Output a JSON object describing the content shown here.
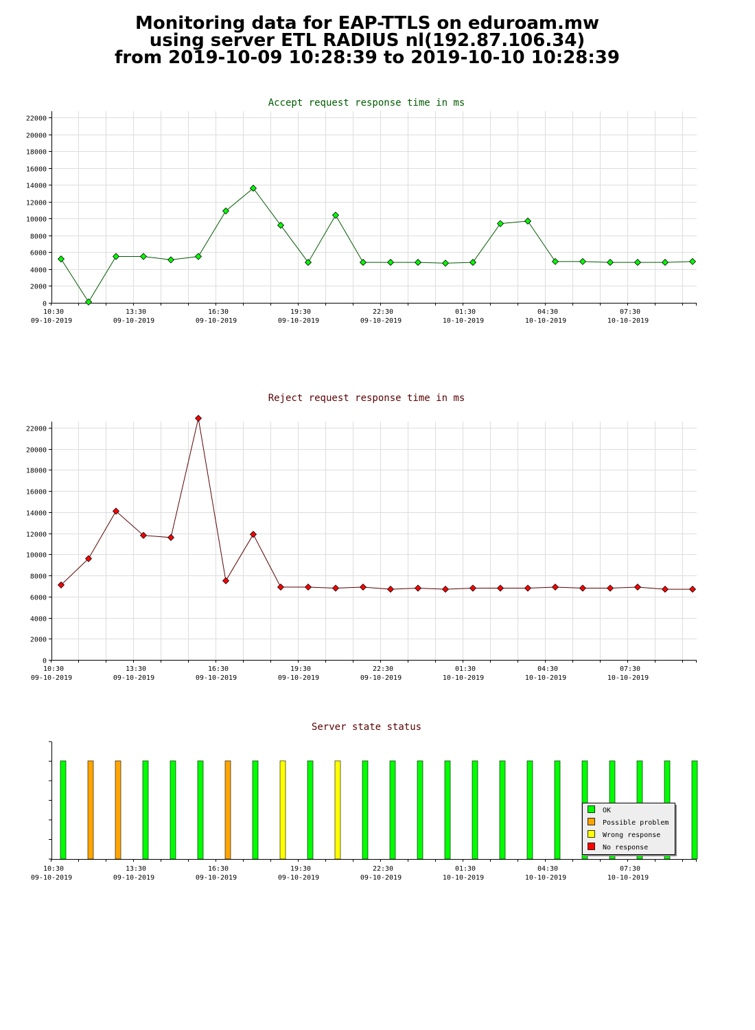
{
  "page": {
    "title_lines": [
      "Monitoring data for EAP-TTLS on eduroam.mw",
      "using server ETL RADIUS nl(192.87.106.34)",
      "from 2019-10-09 10:28:39 to 2019-10-10 10:28:39"
    ]
  },
  "chart_data": [
    {
      "type": "line",
      "title": "Accept request response time in ms",
      "title_color": "#005a00",
      "line_color": "#005a00",
      "marker_color": "#00ff00",
      "ylim": [
        0,
        22000
      ],
      "y_ticks": [
        0,
        2000,
        4000,
        6000,
        8000,
        10000,
        12000,
        14000,
        16000,
        18000,
        20000,
        22000
      ],
      "x_tick_labels": [
        [
          "10:30",
          "09-10-2019"
        ],
        [
          "13:30",
          "09-10-2019"
        ],
        [
          "16:30",
          "09-10-2019"
        ],
        [
          "19:30",
          "09-10-2019"
        ],
        [
          "22:30",
          "09-10-2019"
        ],
        [
          "01:30",
          "10-10-2019"
        ],
        [
          "04:30",
          "10-10-2019"
        ],
        [
          "07:30",
          "10-10-2019"
        ]
      ],
      "grid": true,
      "values": [
        5200,
        100,
        5500,
        5500,
        5100,
        5500,
        10900,
        13600,
        9200,
        4800,
        10400,
        4800,
        4800,
        4800,
        4700,
        4800,
        9400,
        9700,
        4900,
        4900,
        4800,
        4800,
        4800,
        4900
      ]
    },
    {
      "type": "line",
      "title": "Reject request response time in ms",
      "title_color": "#5a0000",
      "line_color": "#5a0000",
      "marker_color": "#ff0000",
      "ylim": [
        0,
        22000
      ],
      "y_ticks": [
        0,
        2000,
        4000,
        6000,
        8000,
        10000,
        12000,
        14000,
        16000,
        18000,
        20000,
        22000
      ],
      "x_tick_labels": [
        [
          "10:30",
          "09-10-2019"
        ],
        [
          "13:30",
          "09-10-2019"
        ],
        [
          "16:30",
          "09-10-2019"
        ],
        [
          "19:30",
          "09-10-2019"
        ],
        [
          "22:30",
          "09-10-2019"
        ],
        [
          "01:30",
          "10-10-2019"
        ],
        [
          "04:30",
          "10-10-2019"
        ],
        [
          "07:30",
          "10-10-2019"
        ]
      ],
      "grid": true,
      "values": [
        7100,
        9600,
        14100,
        11800,
        11600,
        22900,
        7500,
        11900,
        6900,
        6900,
        6800,
        6900,
        6700,
        6800,
        6700,
        6800,
        6800,
        6800,
        6900,
        6800,
        6800,
        6900,
        6700,
        6700
      ]
    },
    {
      "type": "bar",
      "title": "Server state status",
      "title_color": "#5a0000",
      "x_tick_labels": [
        [
          "10:30",
          "09-10-2019"
        ],
        [
          "13:30",
          "09-10-2019"
        ],
        [
          "16:30",
          "09-10-2019"
        ],
        [
          "19:30",
          "09-10-2019"
        ],
        [
          "22:30",
          "09-10-2019"
        ],
        [
          "01:30",
          "10-10-2019"
        ],
        [
          "04:30",
          "10-10-2019"
        ],
        [
          "07:30",
          "10-10-2019"
        ]
      ],
      "states": [
        "OK",
        "Possible problem",
        "Possible problem",
        "OK",
        "OK",
        "OK",
        "Possible problem",
        "OK",
        "Wrong response",
        "OK",
        "Wrong response",
        "OK",
        "OK",
        "OK",
        "OK",
        "OK",
        "OK",
        "OK",
        "OK",
        "OK",
        "OK",
        "OK",
        "OK",
        "OK"
      ],
      "legend": {
        "placement": "bottom-right",
        "items": [
          {
            "label": "OK",
            "color": "#00ff00"
          },
          {
            "label": "Possible problem",
            "color": "#ffa500"
          },
          {
            "label": "Wrong response",
            "color": "#ffff00"
          },
          {
            "label": "No response",
            "color": "#ff0000"
          }
        ]
      }
    }
  ]
}
